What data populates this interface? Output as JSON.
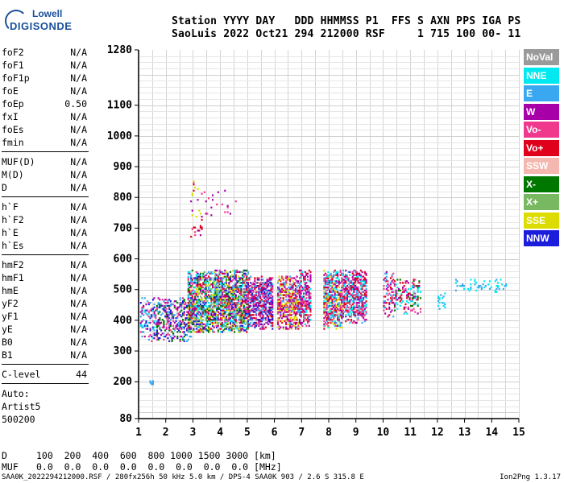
{
  "logo": {
    "line1": "Lowell",
    "line2": "DIGISONDE"
  },
  "header": {
    "line1": "Station YYYY DAY   DDD HHMMSS P1  FFS S AXN PPS IGA PS",
    "line2": "SaoLuis 2022 Oct21 294 212000 RSF     1 715 100 00- 11"
  },
  "params": [
    {
      "name": "foF2",
      "value": "N/A"
    },
    {
      "name": "foF1",
      "value": "N/A"
    },
    {
      "name": "foF1p",
      "value": "N/A"
    },
    {
      "name": "foE",
      "value": "N/A"
    },
    {
      "name": "foEp",
      "value": "0.50"
    },
    {
      "name": "fxI",
      "value": "N/A"
    },
    {
      "name": "foEs",
      "value": "N/A"
    },
    {
      "name": "fmin",
      "value": "N/A"
    },
    {
      "sep": true
    },
    {
      "name": "MUF(D)",
      "value": "N/A"
    },
    {
      "name": "M(D)",
      "value": "N/A"
    },
    {
      "name": "D",
      "value": "N/A"
    },
    {
      "sep": true
    },
    {
      "name": "h`F",
      "value": "N/A"
    },
    {
      "name": "h`F2",
      "value": "N/A"
    },
    {
      "name": "h`E",
      "value": "N/A"
    },
    {
      "name": "h`Es",
      "value": "N/A"
    },
    {
      "sep": true
    },
    {
      "name": "hmF2",
      "value": "N/A"
    },
    {
      "name": "hmF1",
      "value": "N/A"
    },
    {
      "name": "hmE",
      "value": "N/A"
    },
    {
      "name": "yF2",
      "value": "N/A"
    },
    {
      "name": "yF1",
      "value": "N/A"
    },
    {
      "name": "yE",
      "value": "N/A"
    },
    {
      "name": "B0",
      "value": "N/A"
    },
    {
      "name": "B1",
      "value": "N/A"
    },
    {
      "sep": true
    },
    {
      "name": "C-level",
      "value": "44"
    },
    {
      "sep": true
    },
    {
      "text": "Auto:"
    },
    {
      "text": "Artist5"
    },
    {
      "text": "500200"
    }
  ],
  "legend": [
    {
      "label": "NoVal",
      "color": "#9a9a9a"
    },
    {
      "label": "NNE",
      "color": "#00e8f0"
    },
    {
      "label": "E",
      "color": "#3aa8f0"
    },
    {
      "label": "W",
      "color": "#a800a8"
    },
    {
      "label": "Vo-",
      "color": "#f0388c"
    },
    {
      "label": "Vo+",
      "color": "#e0001c"
    },
    {
      "label": "SSW",
      "color": "#f4b8b0"
    },
    {
      "label": "X-",
      "color": "#007800"
    },
    {
      "label": "X+",
      "color": "#78b860"
    },
    {
      "label": "SSE",
      "color": "#dcdc00"
    },
    {
      "label": "NNW",
      "color": "#1c1cdc"
    }
  ],
  "bottom": {
    "d_label": "D",
    "d_values": "100  200  400  600  800 1000 1500 3000 [km]",
    "muf_label": "MUF",
    "muf_values": "0.0  0.0  0.0  0.0  0.0  0.0  0.0  0.0 [MHz]"
  },
  "footer": {
    "left": "SAA0K_2022294212000.RSF / 280fx256h 50 kHz 5.0 km / DPS-4 SAA0K 903 / 2.6 S 315.8 E",
    "right": "Ion2Png 1.3.17"
  },
  "chart_data": {
    "type": "scatter",
    "xlim": [
      1,
      15
    ],
    "ylim": [
      80,
      1280
    ],
    "x_ticks": [
      1,
      2,
      3,
      4,
      5,
      6,
      7,
      8,
      9,
      10,
      11,
      12,
      13,
      14,
      15
    ],
    "y_ticks": [
      80,
      200,
      300,
      400,
      500,
      600,
      700,
      800,
      900,
      1000,
      1100,
      1280
    ],
    "grid": true,
    "xlabel": "",
    "ylabel": "",
    "clusters": [
      {
        "x": [
          1.05,
          1.6
        ],
        "y": [
          330,
          470
        ],
        "density": 0.35,
        "colors": [
          "#1c1cdc",
          "#a800a8",
          "#3aa8f0",
          "#00e8f0",
          "#f0388c"
        ]
      },
      {
        "x": [
          1.6,
          2.9
        ],
        "y": [
          330,
          470
        ],
        "density": 0.45,
        "colors": [
          "#1c1cdc",
          "#a800a8",
          "#f0388c",
          "#3aa8f0",
          "#007800"
        ]
      },
      {
        "x": [
          2.8,
          5.0
        ],
        "y": [
          360,
          560
        ],
        "density": 0.75,
        "colors": [
          "#f0388c",
          "#a800a8",
          "#e0001c",
          "#3aa8f0",
          "#1c1cdc",
          "#dcdc00",
          "#78b860",
          "#00e8f0",
          "#007800"
        ]
      },
      {
        "x": [
          5.0,
          5.9
        ],
        "y": [
          370,
          540
        ],
        "density": 0.7,
        "colors": [
          "#f0388c",
          "#a800a8",
          "#e0001c",
          "#3aa8f0",
          "#1c1cdc"
        ]
      },
      {
        "x": [
          6.1,
          6.9
        ],
        "y": [
          370,
          540
        ],
        "density": 0.7,
        "colors": [
          "#f0388c",
          "#a800a8",
          "#e0001c",
          "#3aa8f0",
          "#dcdc00"
        ]
      },
      {
        "x": [
          6.9,
          7.3
        ],
        "y": [
          380,
          560
        ],
        "density": 0.6,
        "colors": [
          "#f0388c",
          "#a800a8",
          "#e0001c",
          "#00e8f0"
        ]
      },
      {
        "x": [
          7.8,
          8.5
        ],
        "y": [
          370,
          560
        ],
        "density": 0.7,
        "colors": [
          "#f0388c",
          "#a800a8",
          "#e0001c",
          "#3aa8f0",
          "#00e8f0",
          "#dcdc00"
        ]
      },
      {
        "x": [
          8.5,
          9.4
        ],
        "y": [
          390,
          560
        ],
        "density": 0.65,
        "colors": [
          "#f0388c",
          "#a800a8",
          "#3aa8f0",
          "#00e8f0",
          "#e0001c"
        ]
      },
      {
        "x": [
          10.0,
          10.4
        ],
        "y": [
          410,
          560
        ],
        "density": 0.3,
        "colors": [
          "#f0388c",
          "#a800a8",
          "#3aa8f0",
          "#e0001c"
        ]
      },
      {
        "x": [
          10.4,
          11.4
        ],
        "y": [
          420,
          530
        ],
        "density": 0.35,
        "colors": [
          "#f0388c",
          "#a800a8",
          "#e0001c",
          "#007800",
          "#00e8f0"
        ]
      },
      {
        "x": [
          12.0,
          12.3
        ],
        "y": [
          430,
          500
        ],
        "density": 0.25,
        "colors": [
          "#00e8f0",
          "#3aa8f0"
        ]
      },
      {
        "x": [
          12.6,
          14.6
        ],
        "y": [
          490,
          530
        ],
        "density": 0.15,
        "colors": [
          "#00e8f0",
          "#3aa8f0"
        ]
      },
      {
        "x": [
          2.9,
          3.3
        ],
        "y": [
          660,
          850
        ],
        "density": 0.12,
        "colors": [
          "#a800a8",
          "#f0388c",
          "#e0001c",
          "#dcdc00"
        ]
      },
      {
        "x": [
          3.4,
          4.6
        ],
        "y": [
          740,
          820
        ],
        "density": 0.06,
        "colors": [
          "#a800a8",
          "#f0388c"
        ]
      },
      {
        "x": [
          1.4,
          1.5
        ],
        "y": [
          190,
          200
        ],
        "density": 1.0,
        "colors": [
          "#3aa8f0"
        ]
      }
    ]
  }
}
